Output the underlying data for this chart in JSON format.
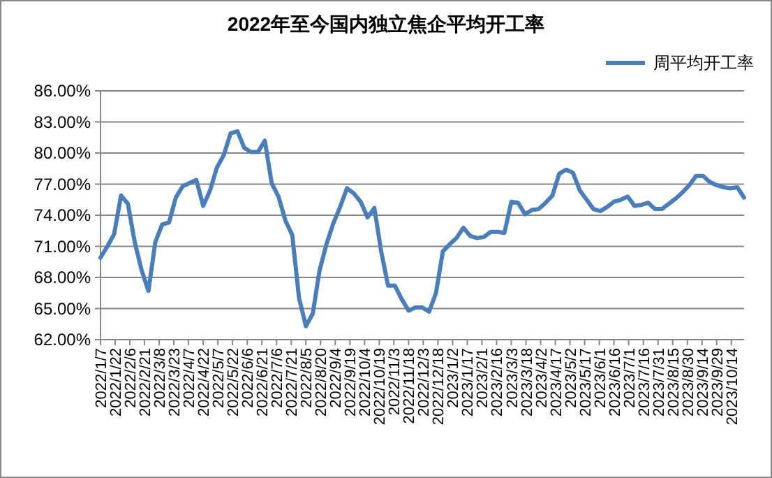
{
  "chart_data": {
    "type": "line",
    "title": "2022年至今国内独立焦企平均开工率",
    "legend": "top right",
    "grid": "y",
    "marker": "none",
    "line_style": "solid",
    "x": [
      "2022-01-07",
      "2022-01-14",
      "2022-01-21",
      "2022-01-28",
      "2022-02-04",
      "2022-02-11",
      "2022-02-18",
      "2022-02-25",
      "2022-03-04",
      "2022-03-11",
      "2022-03-18",
      "2022-03-25",
      "2022-04-01",
      "2022-04-08",
      "2022-04-15",
      "2022-04-22",
      "2022-04-29",
      "2022-05-06",
      "2022-05-13",
      "2022-05-20",
      "2022-05-27",
      "2022-06-03",
      "2022-06-10",
      "2022-06-17",
      "2022-06-24",
      "2022-07-01",
      "2022-07-08",
      "2022-07-15",
      "2022-07-22",
      "2022-07-29",
      "2022-08-05",
      "2022-08-12",
      "2022-08-19",
      "2022-08-26",
      "2022-09-02",
      "2022-09-09",
      "2022-09-16",
      "2022-09-23",
      "2022-09-30",
      "2022-10-07",
      "2022-10-14",
      "2022-10-21",
      "2022-10-28",
      "2022-11-04",
      "2022-11-11",
      "2022-11-18",
      "2022-11-25",
      "2022-12-02",
      "2022-12-09",
      "2022-12-16",
      "2022-12-23",
      "2022-12-30",
      "2023-01-06",
      "2023-01-13",
      "2023-01-20",
      "2023-01-27",
      "2023-02-03",
      "2023-02-10",
      "2023-02-17",
      "2023-02-24",
      "2023-03-03",
      "2023-03-10",
      "2023-03-17",
      "2023-03-24",
      "2023-03-31",
      "2023-04-07",
      "2023-04-14",
      "2023-04-21",
      "2023-04-28",
      "2023-05-05",
      "2023-05-12",
      "2023-05-19",
      "2023-05-26",
      "2023-06-02",
      "2023-06-09",
      "2023-06-16",
      "2023-06-23",
      "2023-06-30",
      "2023-07-07",
      "2023-07-14",
      "2023-07-21",
      "2023-07-28",
      "2023-08-04",
      "2023-08-11",
      "2023-08-18",
      "2023-08-25",
      "2023-09-01",
      "2023-09-08",
      "2023-09-15",
      "2023-09-22",
      "2023-09-29",
      "2023-10-06",
      "2023-10-13",
      "2023-10-20",
      "2023-10-27"
    ],
    "series": [
      {
        "name": "周平均开工率",
        "color": "#4a7ebb",
        "values": [
          69.9,
          71.0,
          72.2,
          75.9,
          75.1,
          71.4,
          68.7,
          66.7,
          71.4,
          73.1,
          73.3,
          75.7,
          76.8,
          77.1,
          77.4,
          74.9,
          76.4,
          78.6,
          79.8,
          81.9,
          82.1,
          80.5,
          80.1,
          80.1,
          81.2,
          77.1,
          75.8,
          73.5,
          72.1,
          66.0,
          63.3,
          64.5,
          68.7,
          71.2,
          73.2,
          74.8,
          76.6,
          76.1,
          75.3,
          73.8,
          74.7,
          70.5,
          67.2,
          67.2,
          65.9,
          64.8,
          65.1,
          65.1,
          64.7,
          66.5,
          70.5,
          71.2,
          71.8,
          72.8,
          72.0,
          71.8,
          71.9,
          72.4,
          72.4,
          72.3,
          75.3,
          75.2,
          74.1,
          74.5,
          74.6,
          75.2,
          75.9,
          78.0,
          78.4,
          78.1,
          76.4,
          75.5,
          74.6,
          74.4,
          74.8,
          75.3,
          75.5,
          75.8,
          74.9,
          75.0,
          75.2,
          74.6,
          74.6,
          75.1,
          75.6,
          76.2,
          76.9,
          77.8,
          77.8,
          77.2,
          76.9,
          76.7,
          76.6,
          76.7,
          75.7
        ]
      }
    ],
    "xlim": [
      "2022-01-07",
      "2023-10-27"
    ],
    "xticks": [
      {
        "value": "2022-01-07",
        "label": "2022/1/7"
      },
      {
        "value": "2022-01-22",
        "label": "2022/1/22"
      },
      {
        "value": "2022-02-06",
        "label": "2022/2/6"
      },
      {
        "value": "2022-02-21",
        "label": "2022/2/21"
      },
      {
        "value": "2022-03-08",
        "label": "2022/3/8"
      },
      {
        "value": "2022-03-23",
        "label": "2022/3/23"
      },
      {
        "value": "2022-04-07",
        "label": "2022/4/7"
      },
      {
        "value": "2022-04-22",
        "label": "2022/4/22"
      },
      {
        "value": "2022-05-07",
        "label": "2022/5/7"
      },
      {
        "value": "2022-05-22",
        "label": "2022/5/22"
      },
      {
        "value": "2022-06-06",
        "label": "2022/6/6"
      },
      {
        "value": "2022-06-21",
        "label": "2022/6/21"
      },
      {
        "value": "2022-07-06",
        "label": "2022/7/6"
      },
      {
        "value": "2022-07-21",
        "label": "2022/7/21"
      },
      {
        "value": "2022-08-05",
        "label": "2022/8/5"
      },
      {
        "value": "2022-08-20",
        "label": "2022/8/20"
      },
      {
        "value": "2022-09-04",
        "label": "2022/9/4"
      },
      {
        "value": "2022-09-19",
        "label": "2022/9/19"
      },
      {
        "value": "2022-10-04",
        "label": "2022/10/4"
      },
      {
        "value": "2022-10-19",
        "label": "2022/10/19"
      },
      {
        "value": "2022-11-03",
        "label": "2022/11/3"
      },
      {
        "value": "2022-11-18",
        "label": "2022/11/18"
      },
      {
        "value": "2022-12-03",
        "label": "2022/12/3"
      },
      {
        "value": "2022-12-18",
        "label": "2022/12/18"
      },
      {
        "value": "2023-01-02",
        "label": "2023/1/2"
      },
      {
        "value": "2023-01-17",
        "label": "2023/1/17"
      },
      {
        "value": "2023-02-01",
        "label": "2023/2/1"
      },
      {
        "value": "2023-02-16",
        "label": "2023/2/16"
      },
      {
        "value": "2023-03-03",
        "label": "2023/3/3"
      },
      {
        "value": "2023-03-18",
        "label": "2023/3/18"
      },
      {
        "value": "2023-04-02",
        "label": "2023/4/2"
      },
      {
        "value": "2023-04-17",
        "label": "2023/4/17"
      },
      {
        "value": "2023-05-02",
        "label": "2023/5/2"
      },
      {
        "value": "2023-05-17",
        "label": "2023/5/17"
      },
      {
        "value": "2023-06-01",
        "label": "2023/6/1"
      },
      {
        "value": "2023-06-16",
        "label": "2023/6/16"
      },
      {
        "value": "2023-07-01",
        "label": "2023/7/1"
      },
      {
        "value": "2023-07-16",
        "label": "2023/7/16"
      },
      {
        "value": "2023-07-31",
        "label": "2023/7/31"
      },
      {
        "value": "2023-08-15",
        "label": "2023/8/15"
      },
      {
        "value": "2023-08-30",
        "label": "2023/8/30"
      },
      {
        "value": "2023-09-14",
        "label": "2023/9/14"
      },
      {
        "value": "2023-09-29",
        "label": "2023/9/29"
      },
      {
        "value": "2023-10-14",
        "label": "2023/10/14"
      }
    ],
    "ylim": [
      62,
      86
    ],
    "yticks": [
      {
        "value": 62,
        "label": "62.00%"
      },
      {
        "value": 65,
        "label": "65.00%"
      },
      {
        "value": 68,
        "label": "68.00%"
      },
      {
        "value": 71,
        "label": "71.00%"
      },
      {
        "value": 74,
        "label": "74.00%"
      },
      {
        "value": 77,
        "label": "77.00%"
      },
      {
        "value": 80,
        "label": "80.00%"
      },
      {
        "value": 83,
        "label": "83.00%"
      },
      {
        "value": 86,
        "label": "86.00%"
      }
    ]
  }
}
